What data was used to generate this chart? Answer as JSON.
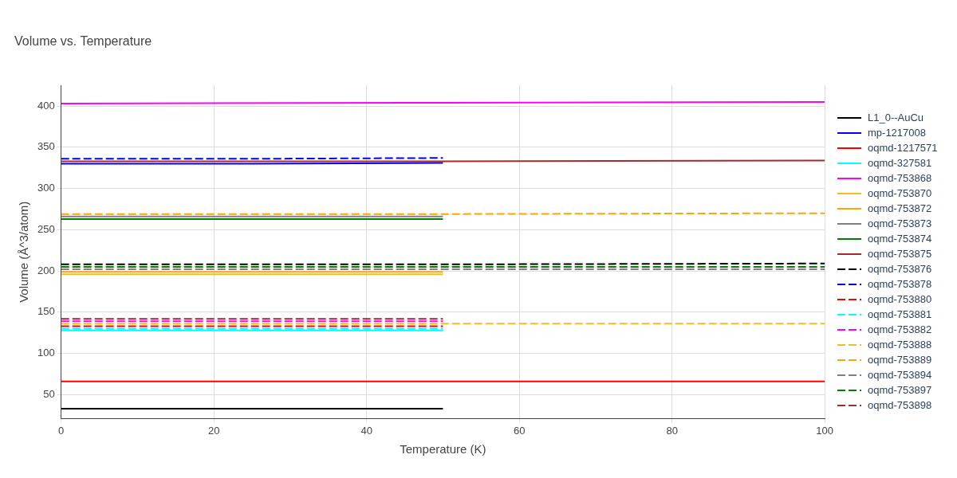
{
  "chart_data": {
    "type": "line",
    "title": "Volume vs. Temperature",
    "xlabel": "Temperature (K)",
    "ylabel": "Volume (Å^3/atom)",
    "xlim": [
      0,
      100
    ],
    "xticks": [
      0,
      20,
      40,
      60,
      80,
      100
    ],
    "ylim": [
      21,
      425
    ],
    "yticks": [
      50,
      100,
      150,
      200,
      250,
      300,
      350,
      400
    ],
    "grid": true,
    "legend": "right",
    "marker": "none",
    "series": [
      {
        "name": "L1_0--AuCu",
        "color": "#000000",
        "line_style": "solid",
        "x": [
          0,
          25,
          50
        ],
        "values": [
          33,
          33,
          33
        ]
      },
      {
        "name": "mp-1217008",
        "color": "#0000ff",
        "line_style": "solid",
        "x": [
          0,
          25,
          50
        ],
        "values": [
          330,
          330,
          331
        ]
      },
      {
        "name": "oqmd-1217571",
        "color": "#ff0000",
        "line_style": "solid",
        "x": [
          0,
          50,
          100
        ],
        "values": [
          66,
          66,
          66
        ]
      },
      {
        "name": "oqmd-327581",
        "color": "#00ffff",
        "line_style": "solid",
        "x": [
          0,
          25,
          50
        ],
        "values": [
          128,
          128,
          128
        ]
      },
      {
        "name": "oqmd-753868",
        "color": "#ff00ff",
        "line_style": "solid",
        "x": [
          0,
          50,
          100
        ],
        "values": [
          403,
          404,
          405
        ]
      },
      {
        "name": "oqmd-753870",
        "color": "#f0c020",
        "line_style": "solid",
        "x": [
          0,
          25,
          50
        ],
        "values": [
          196,
          196,
          196
        ]
      },
      {
        "name": "oqmd-753872",
        "color": "#ffa500",
        "line_style": "solid",
        "x": [
          0,
          25,
          50
        ],
        "values": [
          199,
          199,
          199
        ]
      },
      {
        "name": "oqmd-753873",
        "color": "#808080",
        "line_style": "solid",
        "x": [
          0,
          25,
          50
        ],
        "values": [
          266,
          266,
          266
        ]
      },
      {
        "name": "oqmd-753874",
        "color": "#008000",
        "line_style": "solid",
        "x": [
          0,
          25,
          50
        ],
        "values": [
          263,
          263,
          263
        ]
      },
      {
        "name": "oqmd-753875",
        "color": "#a52a2a",
        "line_style": "solid",
        "x": [
          0,
          50,
          100
        ],
        "values": [
          333,
          333,
          334
        ]
      },
      {
        "name": "oqmd-753876",
        "color": "#000000",
        "line_style": "dashed",
        "x": [
          0,
          50,
          100
        ],
        "values": [
          208,
          208,
          209
        ]
      },
      {
        "name": "oqmd-753878",
        "color": "#0000ff",
        "line_style": "dashed",
        "x": [
          0,
          25,
          50
        ],
        "values": [
          336,
          336,
          337
        ]
      },
      {
        "name": "oqmd-753880",
        "color": "#ff0000",
        "line_style": "dashed",
        "x": [
          0,
          25,
          50
        ],
        "values": [
          133,
          133,
          133
        ]
      },
      {
        "name": "oqmd-753881",
        "color": "#00ffff",
        "line_style": "dashed",
        "x": [
          0,
          25,
          50
        ],
        "values": [
          130,
          130,
          130
        ]
      },
      {
        "name": "oqmd-753882",
        "color": "#ff00ff",
        "line_style": "dashed",
        "x": [
          0,
          25,
          50
        ],
        "values": [
          139,
          139,
          139
        ]
      },
      {
        "name": "oqmd-753888",
        "color": "#f0c020",
        "line_style": "dashed",
        "x": [
          0,
          50,
          100
        ],
        "values": [
          136,
          136,
          136
        ]
      },
      {
        "name": "oqmd-753889",
        "color": "#ffa500",
        "line_style": "dashed",
        "x": [
          0,
          50,
          100
        ],
        "values": [
          269,
          269,
          270
        ]
      },
      {
        "name": "oqmd-753894",
        "color": "#808080",
        "line_style": "dashed",
        "x": [
          0,
          50,
          100
        ],
        "values": [
          202,
          202,
          202
        ]
      },
      {
        "name": "oqmd-753897",
        "color": "#008000",
        "line_style": "dashed",
        "x": [
          0,
          50,
          100
        ],
        "values": [
          205,
          205,
          205
        ]
      },
      {
        "name": "oqmd-753898",
        "color": "#a52a2a",
        "line_style": "dashed",
        "x": [
          0,
          25,
          50
        ],
        "values": [
          142,
          142,
          142
        ]
      }
    ]
  }
}
